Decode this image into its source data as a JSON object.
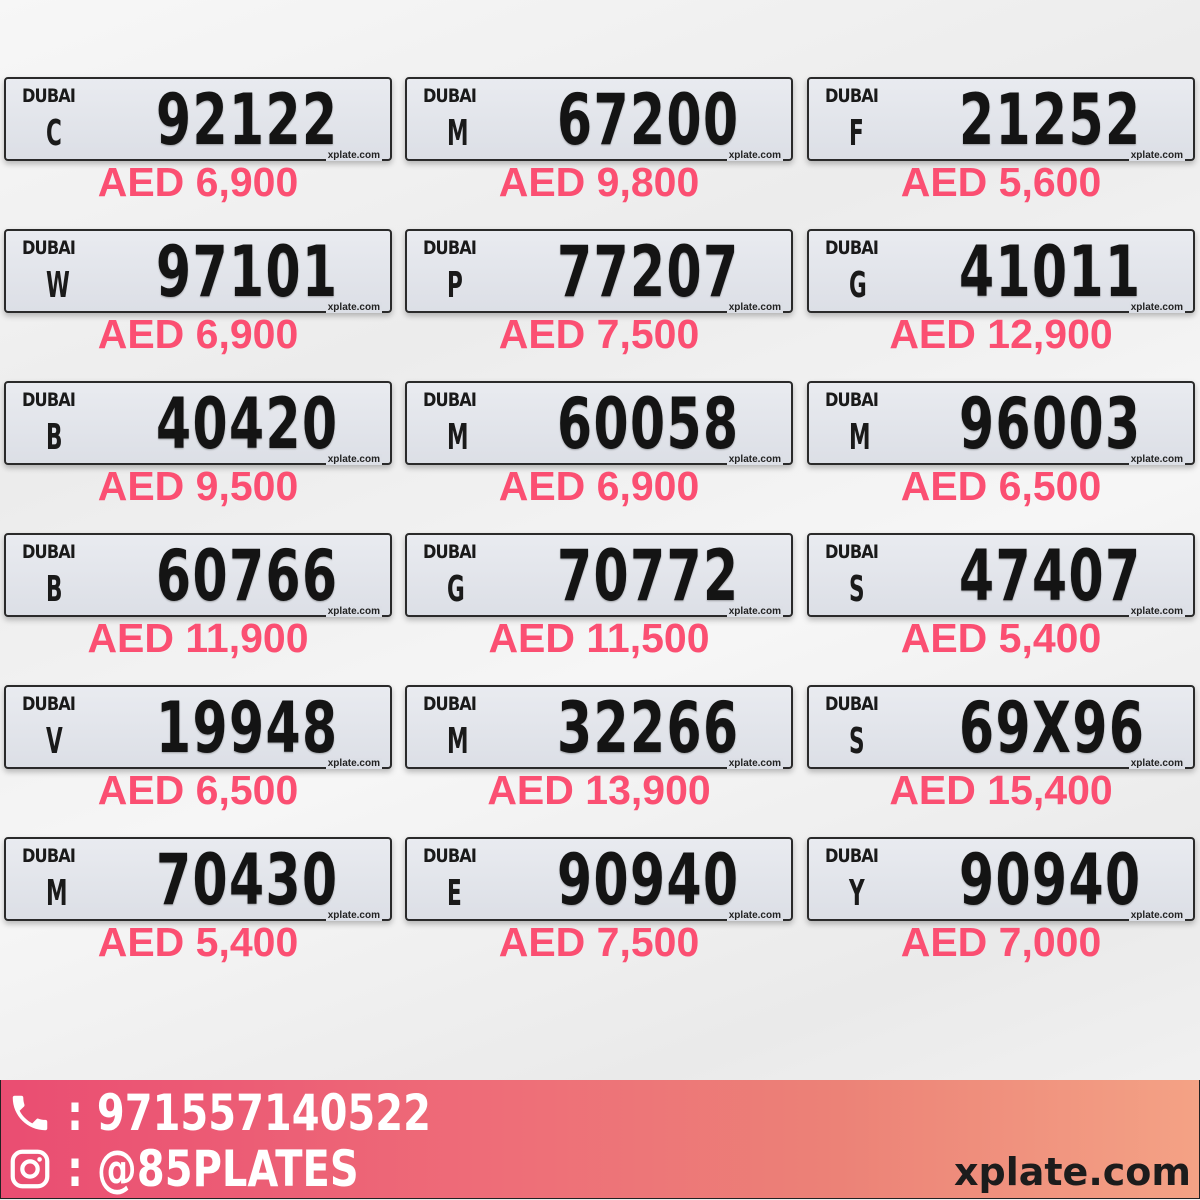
{
  "plates": [
    {
      "emirate": "DUBAI",
      "code": "C",
      "number": "92122",
      "watermark": "xplate.com",
      "price": "AED 6,900"
    },
    {
      "emirate": "DUBAI",
      "code": "M",
      "number": "67200",
      "watermark": "xplate.com",
      "price": "AED 9,800"
    },
    {
      "emirate": "DUBAI",
      "code": "F",
      "number": "21252",
      "watermark": "xplate.com",
      "price": "AED 5,600"
    },
    {
      "emirate": "DUBAI",
      "code": "W",
      "number": "97101",
      "watermark": "xplate.com",
      "price": "AED 6,900"
    },
    {
      "emirate": "DUBAI",
      "code": "P",
      "number": "77207",
      "watermark": "xplate.com",
      "price": "AED 7,500"
    },
    {
      "emirate": "DUBAI",
      "code": "G",
      "number": "41011",
      "watermark": "xplate.com",
      "price": "AED 12,900"
    },
    {
      "emirate": "DUBAI",
      "code": "B",
      "number": "40420",
      "watermark": "xplate.com",
      "price": "AED 9,500"
    },
    {
      "emirate": "DUBAI",
      "code": "M",
      "number": "60058",
      "watermark": "xplate.com",
      "price": "AED 6,900"
    },
    {
      "emirate": "DUBAI",
      "code": "M",
      "number": "96003",
      "watermark": "xplate.com",
      "price": "AED 6,500"
    },
    {
      "emirate": "DUBAI",
      "code": "B",
      "number": "60766",
      "watermark": "xplate.com",
      "price": "AED 11,900"
    },
    {
      "emirate": "DUBAI",
      "code": "G",
      "number": "70772",
      "watermark": "xplate.com",
      "price": "AED 11,500"
    },
    {
      "emirate": "DUBAI",
      "code": "S",
      "number": "47407",
      "watermark": "xplate.com",
      "price": "AED 5,400"
    },
    {
      "emirate": "DUBAI",
      "code": "V",
      "number": "19948",
      "watermark": "xplate.com",
      "price": "AED 6,500"
    },
    {
      "emirate": "DUBAI",
      "code": "M",
      "number": "32266",
      "watermark": "xplate.com",
      "price": "AED 13,900"
    },
    {
      "emirate": "DUBAI",
      "code": "S",
      "number": "69X96",
      "watermark": "xplate.com",
      "price": "AED 15,400"
    },
    {
      "emirate": "DUBAI",
      "code": "M",
      "number": "70430",
      "watermark": "xplate.com",
      "price": "AED 5,400"
    },
    {
      "emirate": "DUBAI",
      "code": "E",
      "number": "90940",
      "watermark": "xplate.com",
      "price": "AED 7,500"
    },
    {
      "emirate": "DUBAI",
      "code": "Y",
      "number": "90940",
      "watermark": "xplate.com",
      "price": "AED 7,000"
    }
  ],
  "footer": {
    "phone": ": 971557140522",
    "instagram": ": @85PLATES",
    "site": "xplate.com",
    "phone_icon": "phone-icon",
    "instagram_icon": "instagram-icon"
  },
  "colors": {
    "price": "#fb4f72",
    "footer_start": "#ea4d72",
    "footer_end": "#f4a285"
  }
}
